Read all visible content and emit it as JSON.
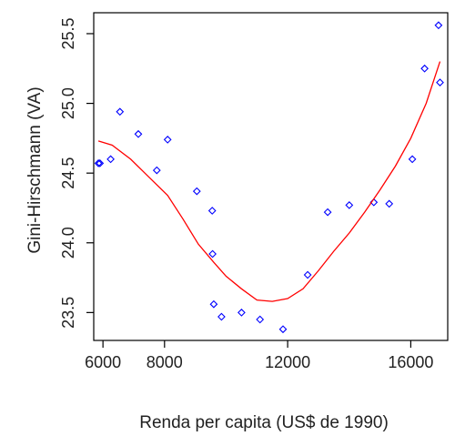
{
  "chart_data": {
    "type": "scatter",
    "xlabel": "Renda per capita (US$ de 1990)",
    "ylabel": "Gini-Hirschmann (VA)",
    "xlim": [
      5700,
      17200
    ],
    "ylim": [
      23.3,
      25.65
    ],
    "x_ticks": [
      {
        "value": 6000,
        "label": "6000"
      },
      {
        "value": 8000,
        "label": "8000"
      },
      {
        "value": 12000,
        "label": "12000"
      },
      {
        "value": 16000,
        "label": "16000"
      }
    ],
    "y_ticks": [
      {
        "value": 23.5,
        "label": "23.5"
      },
      {
        "value": 24.0,
        "label": "24.0"
      },
      {
        "value": 24.5,
        "label": "24.5"
      },
      {
        "value": 25.0,
        "label": "25.0"
      },
      {
        "value": 25.5,
        "label": "25.5"
      }
    ],
    "series": [
      {
        "kind": "points",
        "color": "#0000ff",
        "marker": "diamond-open",
        "points": [
          [
            5850,
            24.57
          ],
          [
            5900,
            24.57
          ],
          [
            6250,
            24.6
          ],
          [
            6550,
            24.94
          ],
          [
            7150,
            24.78
          ],
          [
            7750,
            24.52
          ],
          [
            8100,
            24.74
          ],
          [
            9050,
            24.37
          ],
          [
            9550,
            24.23
          ],
          [
            9560,
            23.92
          ],
          [
            9600,
            23.56
          ],
          [
            9850,
            23.47
          ],
          [
            10500,
            23.5
          ],
          [
            11100,
            23.45
          ],
          [
            11850,
            23.38
          ],
          [
            12650,
            23.77
          ],
          [
            13300,
            24.22
          ],
          [
            14000,
            24.27
          ],
          [
            14800,
            24.29
          ],
          [
            15300,
            24.28
          ],
          [
            16050,
            24.6
          ],
          [
            16450,
            25.25
          ],
          [
            16950,
            25.15
          ],
          [
            16900,
            25.56
          ]
        ]
      },
      {
        "kind": "line",
        "color": "#ff0000",
        "points": [
          [
            5850,
            24.73
          ],
          [
            6300,
            24.7
          ],
          [
            6900,
            24.6
          ],
          [
            7500,
            24.47
          ],
          [
            8100,
            24.34
          ],
          [
            8600,
            24.17
          ],
          [
            9100,
            23.99
          ],
          [
            9600,
            23.86
          ],
          [
            10000,
            23.76
          ],
          [
            10500,
            23.67
          ],
          [
            11000,
            23.59
          ],
          [
            11500,
            23.58
          ],
          [
            12000,
            23.6
          ],
          [
            12500,
            23.67
          ],
          [
            13000,
            23.8
          ],
          [
            13500,
            23.94
          ],
          [
            14000,
            24.07
          ],
          [
            14500,
            24.22
          ],
          [
            15000,
            24.38
          ],
          [
            15500,
            24.55
          ],
          [
            16000,
            24.75
          ],
          [
            16500,
            25.0
          ],
          [
            16950,
            25.3
          ]
        ]
      }
    ]
  }
}
